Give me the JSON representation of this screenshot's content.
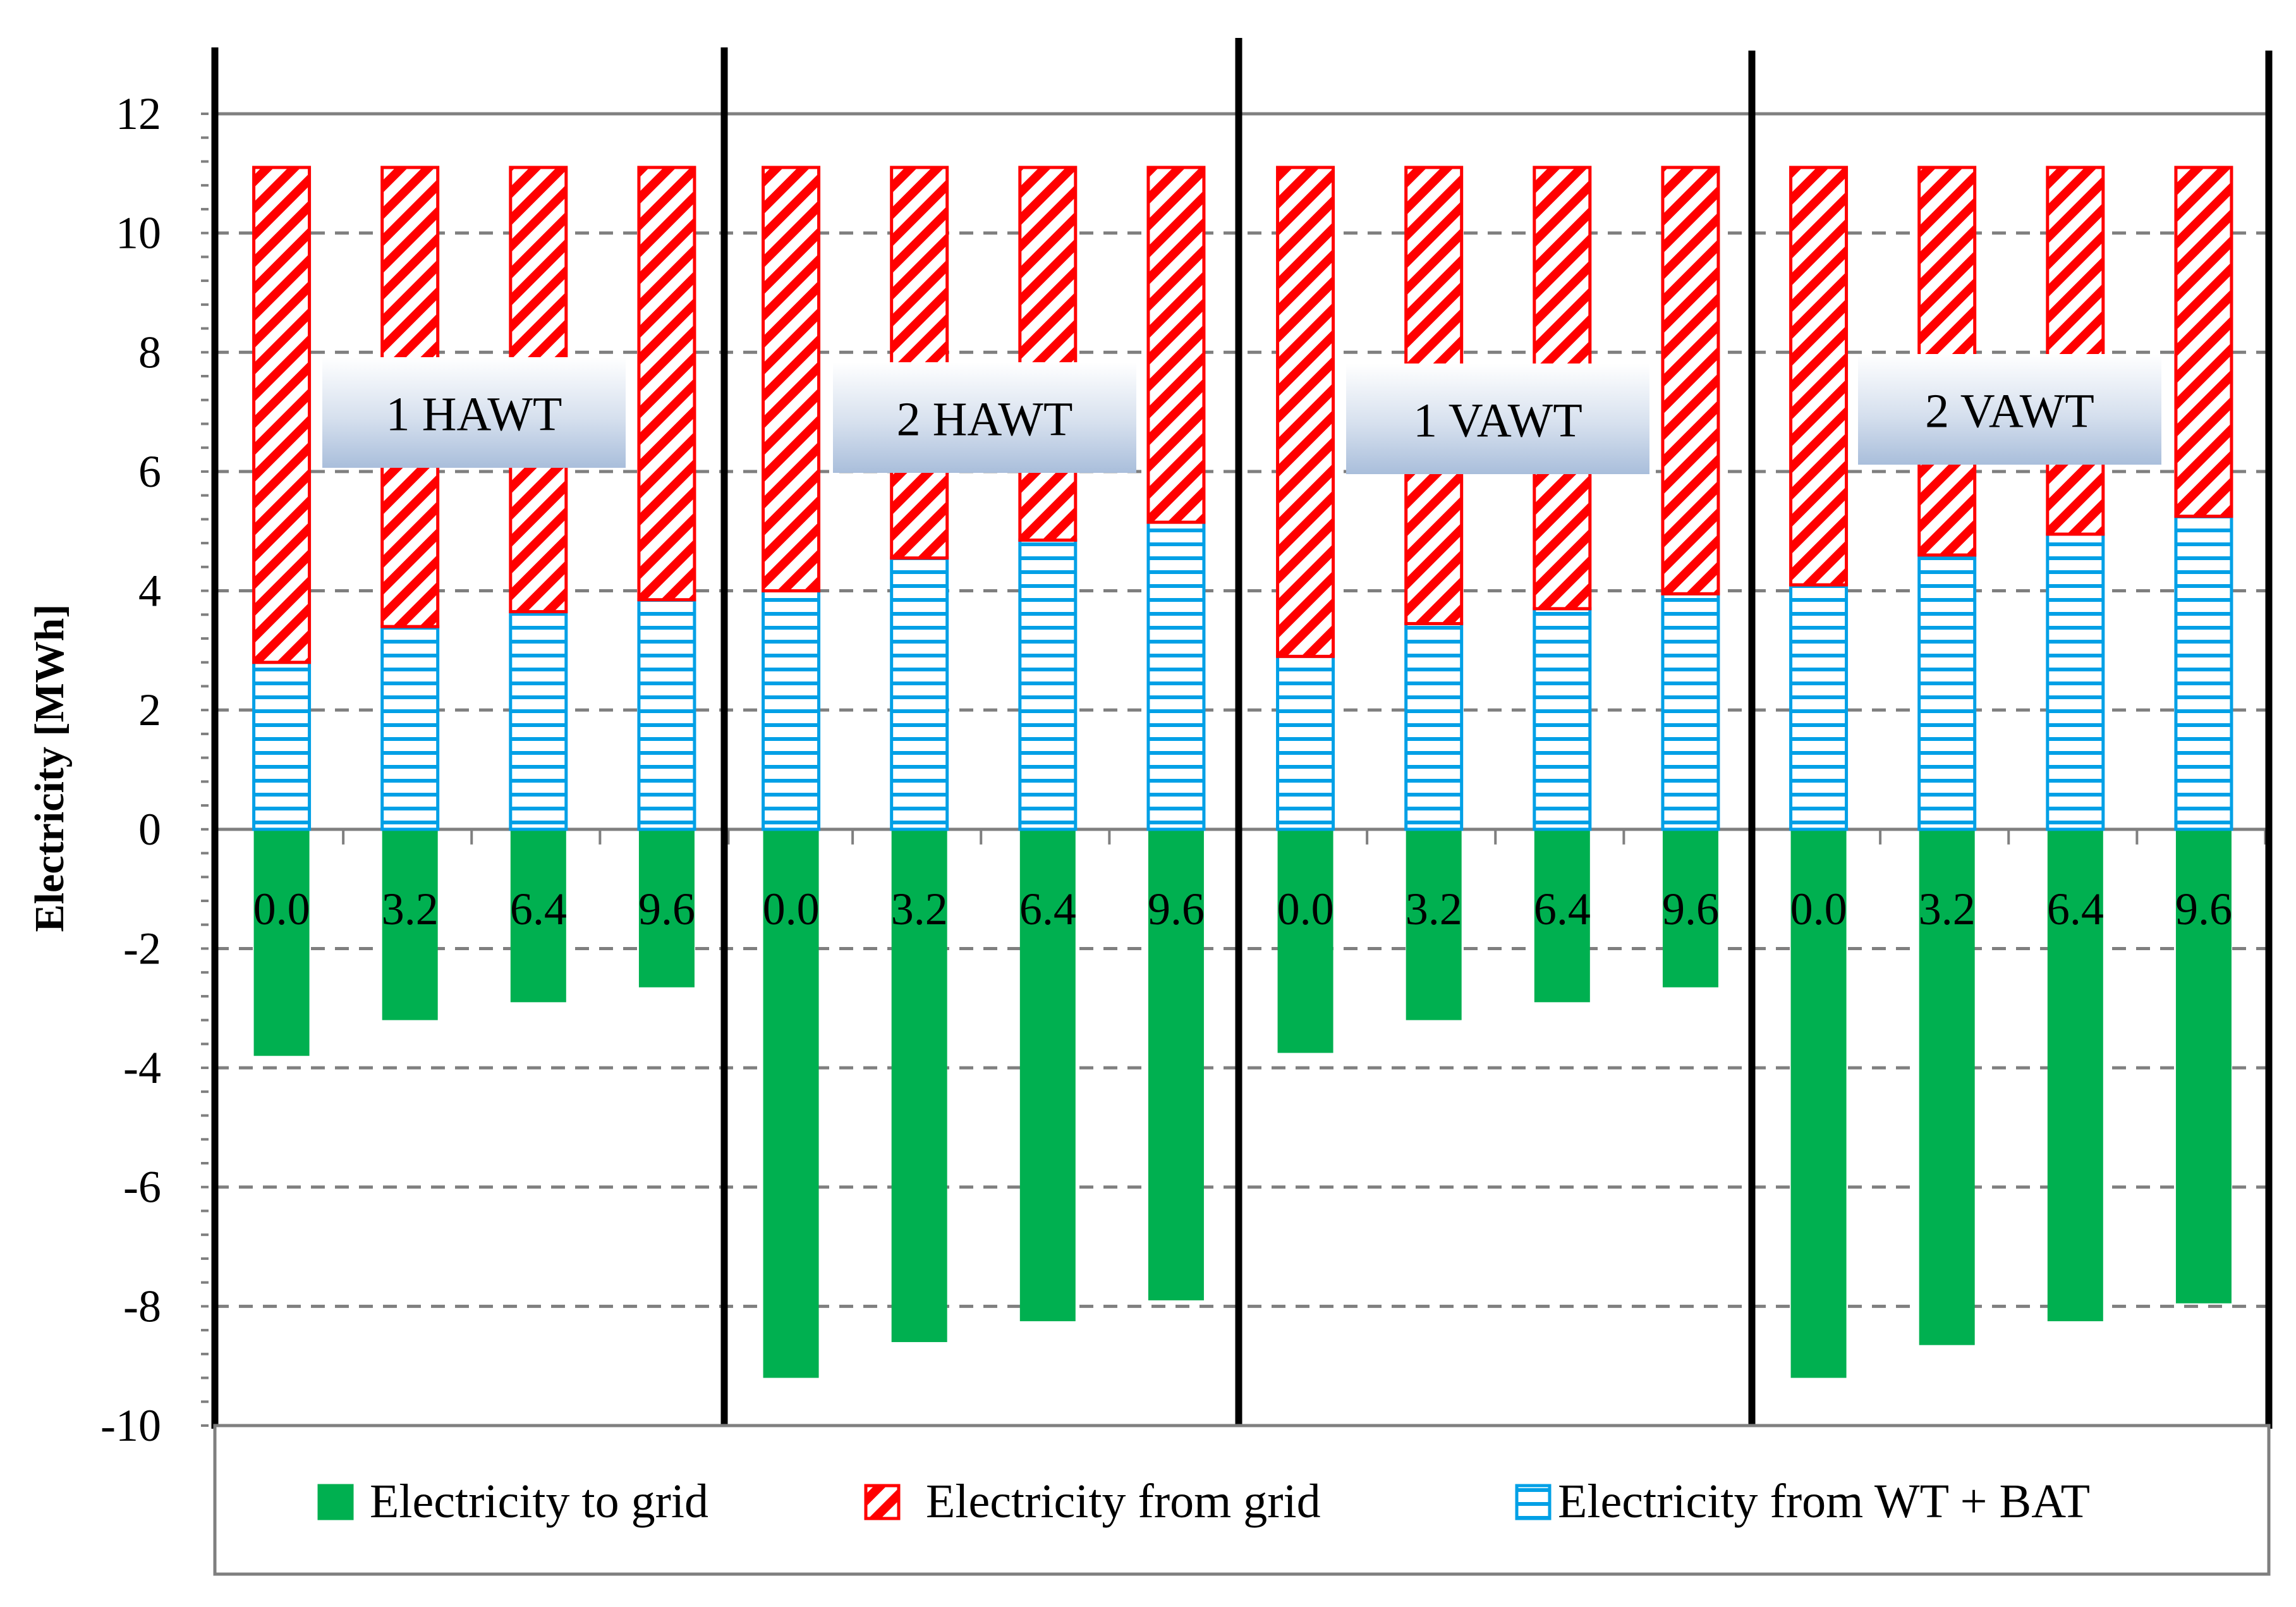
{
  "chart_data": {
    "type": "bar",
    "stacked": true,
    "ylabel": "Electricity [MWh]",
    "ylim": [
      -10,
      12
    ],
    "yticks": [
      12,
      10,
      8,
      6,
      4,
      2,
      0,
      -2,
      -4,
      -6,
      -8,
      -10
    ],
    "grid": true,
    "legend_position": "bottom",
    "groups": [
      "1 HAWT",
      "2 HAWT",
      "1 VAWT",
      "2 VAWT"
    ],
    "categories": [
      "0.0",
      "3.2",
      "6.4",
      "9.6"
    ],
    "series": [
      {
        "name": "Electricity to grid",
        "color": "#00b050",
        "pattern": "solid",
        "values": [
          [
            -3.8,
            -3.2,
            -2.9,
            -2.65
          ],
          [
            -9.2,
            -8.6,
            -8.25,
            -7.9
          ],
          [
            -3.75,
            -3.2,
            -2.9,
            -2.65
          ],
          [
            -9.2,
            -8.65,
            -8.25,
            -7.95
          ]
        ]
      },
      {
        "name": "Electricity from grid",
        "color": "#ff0000",
        "pattern": "diagonal-stripes",
        "values": [
          [
            8.3,
            7.7,
            7.45,
            7.25
          ],
          [
            7.1,
            6.55,
            6.25,
            5.95
          ],
          [
            8.2,
            7.65,
            7.4,
            7.15
          ],
          [
            7.0,
            6.5,
            6.15,
            5.85
          ]
        ]
      },
      {
        "name": "Electricity from WT + BAT",
        "color": "#00a0e6",
        "pattern": "horizontal-stripes",
        "values": [
          [
            2.8,
            3.4,
            3.65,
            3.85
          ],
          [
            4.0,
            4.55,
            4.85,
            5.15
          ],
          [
            2.9,
            3.45,
            3.7,
            3.95
          ],
          [
            4.1,
            4.6,
            4.95,
            5.25
          ]
        ]
      }
    ]
  }
}
